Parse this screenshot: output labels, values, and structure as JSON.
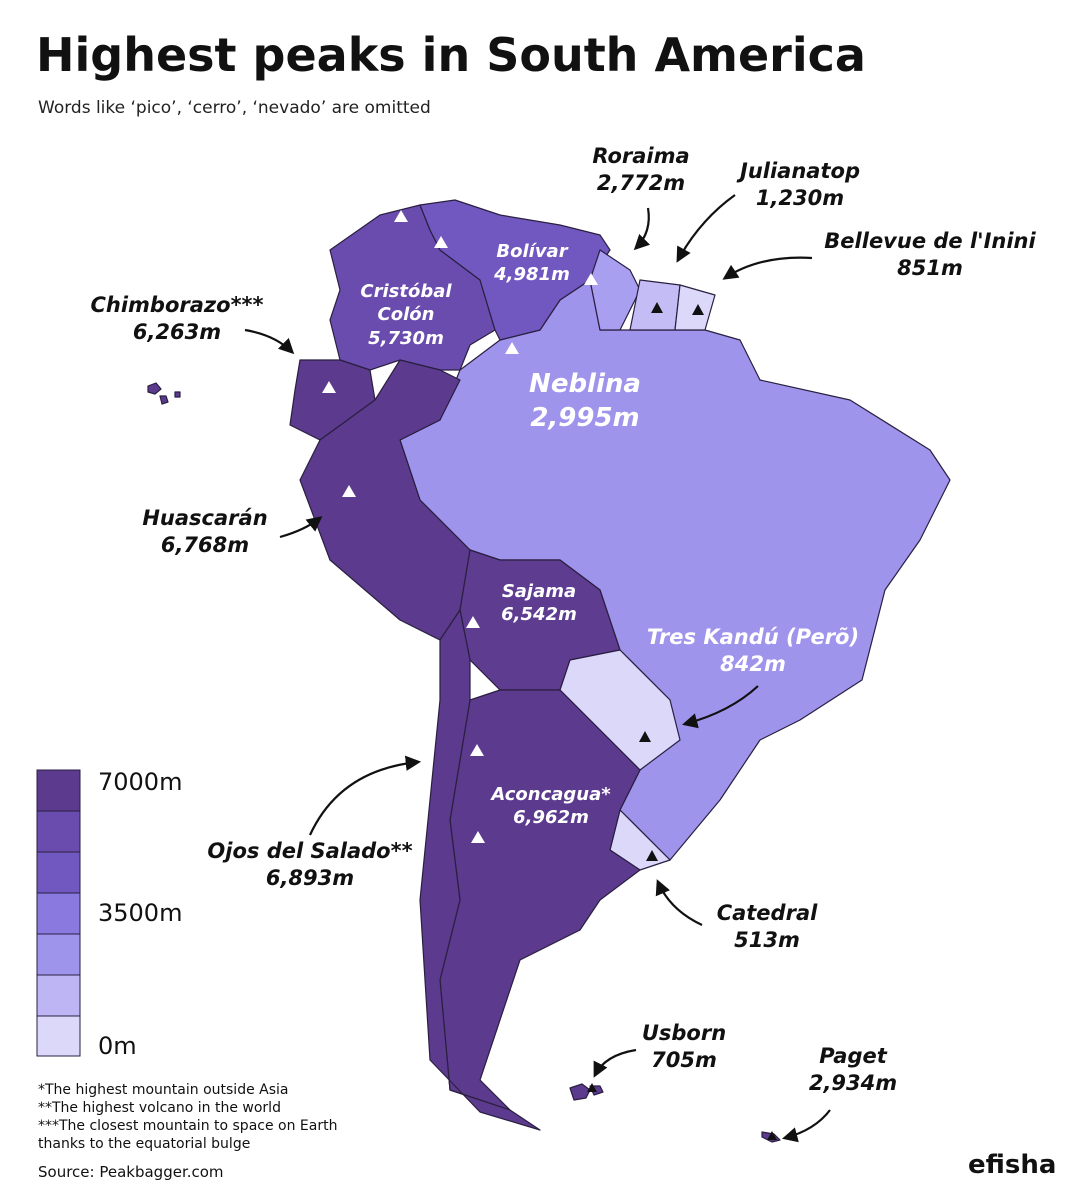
{
  "title": "Highest peaks in South America",
  "subtitle": "Words like ‘pico’, ‘cerro’, ‘nevado’ are omitted",
  "peaks": [
    {
      "name": "Roraima",
      "elevation": "2,772m"
    },
    {
      "name": "Julianatop",
      "elevation": "1,230m"
    },
    {
      "name": "Bellevue de l'Inini",
      "elevation": "851m"
    },
    {
      "name": "Chimborazo***",
      "elevation": "6,263m"
    },
    {
      "name": "Bolívar",
      "elevation": "4,981m"
    },
    {
      "name": "Cristóbal Colón",
      "elevation": "5,730m"
    },
    {
      "name": "Neblina",
      "elevation": "2,995m"
    },
    {
      "name": "Huascarán",
      "elevation": "6,768m"
    },
    {
      "name": "Sajama",
      "elevation": "6,542m"
    },
    {
      "name": "Tres Kandú (Perõ)",
      "elevation": "842m"
    },
    {
      "name": "Aconcagua*",
      "elevation": "6,962m"
    },
    {
      "name": "Ojos del Salado**",
      "elevation": "6,893m"
    },
    {
      "name": "Catedral",
      "elevation": "513m"
    },
    {
      "name": "Usborn",
      "elevation": "705m"
    },
    {
      "name": "Paget",
      "elevation": "2,934m"
    }
  ],
  "legend": {
    "labels": [
      "7000m",
      "3500m",
      "0m"
    ]
  },
  "footnotes": [
    "*The highest mountain outside Asia",
    "**The highest volcano in the world",
    "***The closest mountain to space on Earth thanks to the equatorial bulge"
  ],
  "source": "Source: Peakbagger.com",
  "brand": "efisha"
}
